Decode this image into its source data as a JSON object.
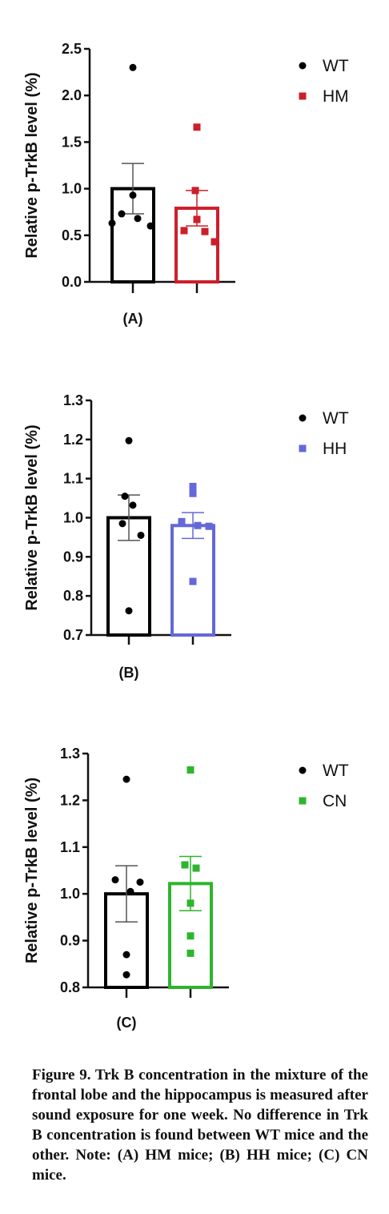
{
  "chart_data": [
    {
      "type": "bar",
      "panel_label": "(A)",
      "ylabel": "Relative p-TrkB level (%)",
      "ylim": [
        0,
        2.5
      ],
      "yticks": [
        "0.0",
        "0.5",
        "1.0",
        "1.5",
        "2.0",
        "2.5"
      ],
      "legend_placement": "top-right",
      "series": [
        {
          "name": "WT",
          "color": "#000000",
          "marker": "circle",
          "mean": 1.0,
          "sem": 0.27,
          "points": [
            2.3,
            0.73,
            0.68,
            0.63,
            0.6,
            0.93
          ]
        },
        {
          "name": "HM",
          "color": "#cc1f2a",
          "marker": "square",
          "mean": 0.79,
          "sem": 0.19,
          "points": [
            1.66,
            0.98,
            0.67,
            0.55,
            0.54,
            0.43
          ]
        }
      ]
    },
    {
      "type": "bar",
      "panel_label": "(B)",
      "ylabel": "Relative p-TrkB level (%)",
      "ylim": [
        0.7,
        1.3
      ],
      "yticks": [
        "0.7",
        "0.8",
        "0.9",
        "1.0",
        "1.1",
        "1.2",
        "1.3"
      ],
      "legend_placement": "top-right",
      "series": [
        {
          "name": "WT",
          "color": "#000000",
          "marker": "circle",
          "mean": 1.0,
          "sem": 0.058,
          "points": [
            1.197,
            1.055,
            1.032,
            0.985,
            0.955,
            0.762
          ]
        },
        {
          "name": "HH",
          "color": "#6468d8",
          "marker": "square",
          "mean": 0.98,
          "sem": 0.033,
          "points": [
            1.08,
            1.062,
            0.99,
            0.98,
            0.978,
            0.837
          ]
        }
      ]
    },
    {
      "type": "bar",
      "panel_label": "(C)",
      "ylabel": "Relative p-TrkB level (%)",
      "ylim": [
        0.8,
        1.3
      ],
      "yticks": [
        "0.8",
        "0.9",
        "1.0",
        "1.1",
        "1.2",
        "1.3"
      ],
      "legend_placement": "top-right",
      "series": [
        {
          "name": "WT",
          "color": "#000000",
          "marker": "circle",
          "mean": 1.0,
          "sem": 0.06,
          "points": [
            1.245,
            1.03,
            1.025,
            1.005,
            0.87,
            0.827
          ]
        },
        {
          "name": "CN",
          "color": "#2db52d",
          "marker": "square",
          "mean": 1.022,
          "sem": 0.058,
          "points": [
            1.265,
            1.062,
            1.055,
            0.98,
            0.91,
            0.873
          ]
        }
      ]
    }
  ],
  "caption": "Figure 9. Trk B concentration in the mixture of the frontal lobe and the hippocampus is measured after sound exposure for one week. No difference in Trk B concentration is found between WT mice and the other. Note: (A) HM mice; (B) HH mice; (C) CN mice."
}
